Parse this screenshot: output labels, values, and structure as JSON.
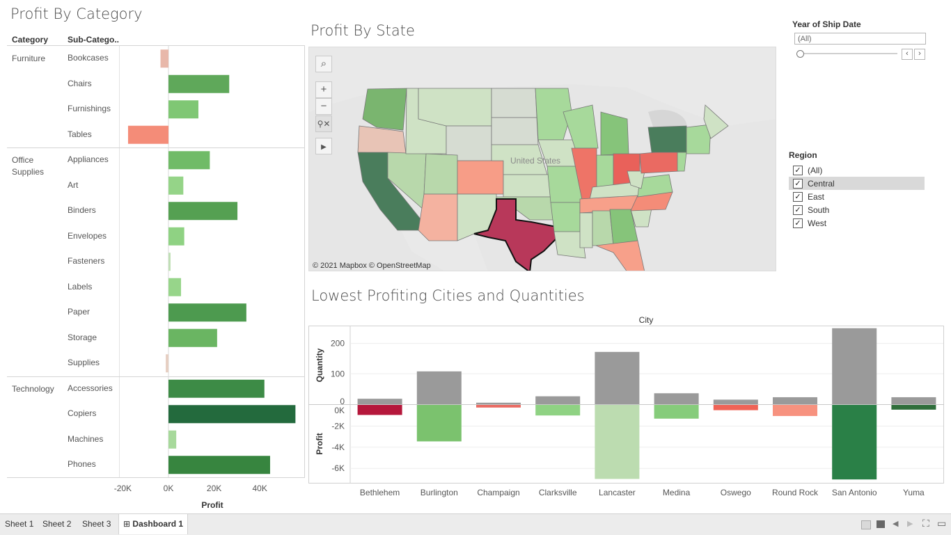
{
  "category_panel": {
    "title": "Profit By Category",
    "col_category": "Category",
    "col_subcategory": "Sub-Catego..",
    "axis_title": "Profit",
    "axis_ticks": [
      "-20K",
      "0K",
      "20K",
      "40K"
    ],
    "groups": [
      {
        "name": "Furniture",
        "items": [
          {
            "label": "Bookcases",
            "profit": -3500,
            "color": "#e8b8aa"
          },
          {
            "label": "Chairs",
            "profit": 26600,
            "color": "#5fa85a"
          },
          {
            "label": "Furnishings",
            "profit": 13100,
            "color": "#7fc774"
          },
          {
            "label": "Tables",
            "profit": -17700,
            "color": "#f48c78"
          }
        ]
      },
      {
        "name": "Office Supplies",
        "items": [
          {
            "label": "Appliances",
            "profit": 18100,
            "color": "#70bb67"
          },
          {
            "label": "Art",
            "profit": 6500,
            "color": "#95d488"
          },
          {
            "label": "Binders",
            "profit": 30200,
            "color": "#55a052"
          },
          {
            "label": "Envelopes",
            "profit": 6900,
            "color": "#8fd283"
          },
          {
            "label": "Fasteners",
            "profit": 900,
            "color": "#bfdfb5"
          },
          {
            "label": "Labels",
            "profit": 5500,
            "color": "#97d58a"
          },
          {
            "label": "Paper",
            "profit": 34100,
            "color": "#4d9a4f"
          },
          {
            "label": "Storage",
            "profit": 21300,
            "color": "#6ab562"
          },
          {
            "label": "Supplies",
            "profit": -1200,
            "color": "#e6cfc2"
          }
        ]
      },
      {
        "name": "Technology",
        "items": [
          {
            "label": "Accessories",
            "profit": 42000,
            "color": "#3d8b46"
          },
          {
            "label": "Copiers",
            "profit": 55600,
            "color": "#236a3d"
          },
          {
            "label": "Machines",
            "profit": 3400,
            "color": "#a7d99b"
          },
          {
            "label": "Phones",
            "profit": 44500,
            "color": "#37853f"
          }
        ]
      }
    ]
  },
  "map_panel": {
    "title": "Profit By State",
    "attribution": "© 2021 Mapbox © OpenStreetMap",
    "country_label": "United States",
    "controls": [
      "search-icon",
      "zoom-in-icon",
      "zoom-out-icon",
      "pin-clear-icon",
      "play-icon"
    ]
  },
  "filters": {
    "year_title": "Year of Ship Date",
    "year_value": "(All)",
    "region_title": "Region",
    "regions": [
      {
        "label": "(All)",
        "checked": true,
        "selected": false
      },
      {
        "label": "Central",
        "checked": true,
        "selected": true
      },
      {
        "label": "East",
        "checked": true,
        "selected": false
      },
      {
        "label": "South",
        "checked": true,
        "selected": false
      },
      {
        "label": "West",
        "checked": true,
        "selected": false
      }
    ]
  },
  "cities_panel": {
    "title": "Lowest Profiting Cities and Quantities",
    "column_header": "City",
    "quantity_axis_title": "Quantity",
    "profit_axis_title": "Profit",
    "quantity_ticks": [
      "200",
      "100",
      "0"
    ],
    "profit_ticks": [
      "0K",
      "-2K",
      "-4K",
      "-6K"
    ]
  },
  "chart_data": {
    "type": "bar",
    "categories": [
      "Bethlehem",
      "Burlington",
      "Champaign",
      "Clarksville",
      "Lancaster",
      "Medina",
      "Oswego",
      "Round Rock",
      "San Antonio",
      "Yuma"
    ],
    "series": [
      {
        "name": "Quantity",
        "values": [
          18,
          108,
          5,
          26,
          172,
          36,
          15,
          23,
          250,
          23
        ]
      },
      {
        "name": "Profit",
        "values": [
          -950,
          -3450,
          -250,
          -1000,
          -7000,
          -1300,
          -500,
          -1050,
          -7050,
          -450
        ]
      }
    ],
    "profit_colors": [
      "#b5173b",
      "#7bc26e",
      "#ea6a62",
      "#8fd283",
      "#bcdcb0",
      "#86cc7b",
      "#ef6356",
      "#f7927f",
      "#2a8047",
      "#2f6e3b"
    ],
    "quantity_color": "#9a9a9a",
    "ylim_quantity": [
      0,
      250
    ],
    "ylim_profit": [
      -7000,
      0
    ]
  },
  "tabs": {
    "items": [
      "Sheet 1",
      "Sheet 2",
      "Sheet 3"
    ],
    "active": "Dashboard 1"
  }
}
